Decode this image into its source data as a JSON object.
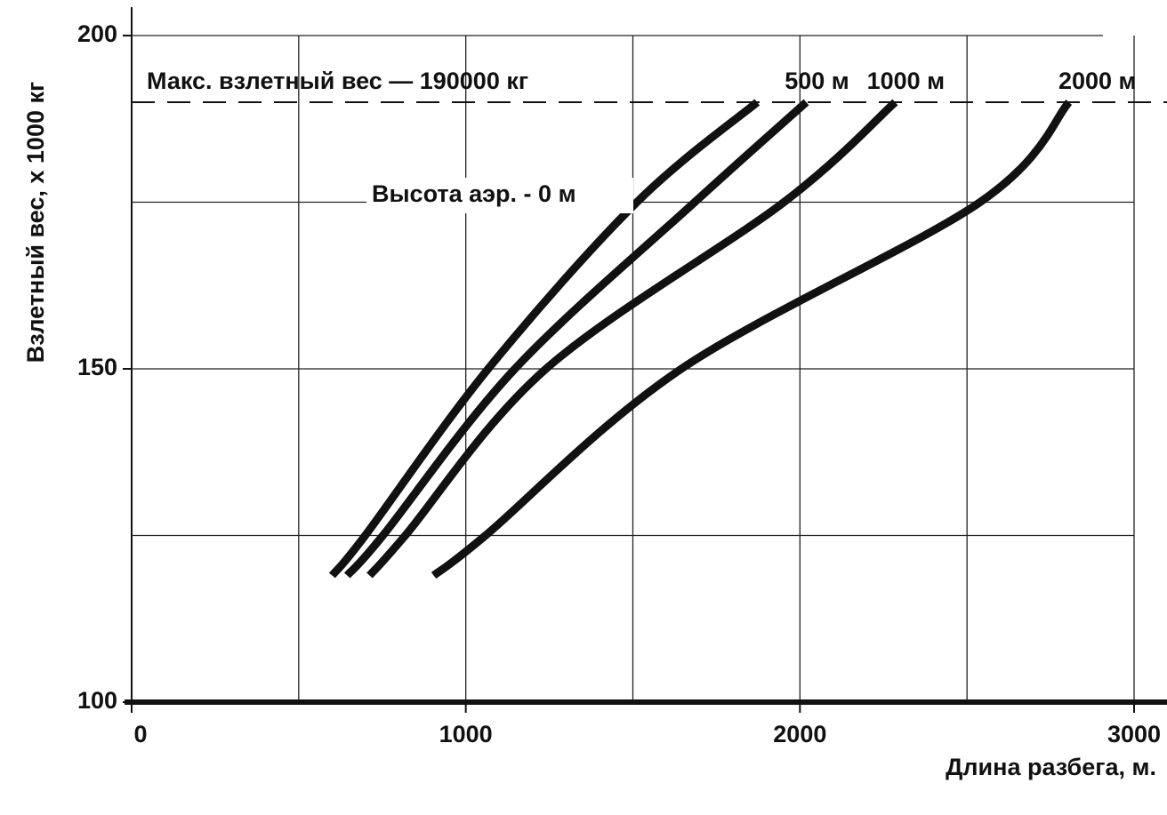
{
  "chart_data": {
    "type": "line",
    "xlabel": "Длина разбега, м.",
    "ylabel": "Взлетный вес, х 1000 кг",
    "annotation": "Макс. взлетный вес — 190000 кг",
    "max_line": 190,
    "xlim": [
      0,
      3000
    ],
    "ylim": [
      100,
      200
    ],
    "xticks": [
      0,
      1000,
      2000,
      3000
    ],
    "yticks": [
      100,
      150,
      200
    ],
    "xgrid": [
      500,
      1000,
      1500,
      2000,
      2500,
      3000
    ],
    "ygrid": [
      125,
      150,
      175,
      200
    ],
    "color": "#111",
    "series": [
      {
        "name": "Высота аэр. - 0 м",
        "x": [
          600,
          699,
          1067,
          1512,
          1872
        ],
        "values": [
          119,
          125,
          150,
          175,
          190
        ]
      },
      {
        "name": "500 м",
        "x": [
          645,
          752,
          1147,
          1685,
          2019
        ],
        "values": [
          119,
          125,
          150,
          175,
          190
        ]
      },
      {
        "name": "1000 м",
        "x": [
          712,
          819,
          1240,
          1952,
          2285
        ],
        "values": [
          119,
          125,
          150,
          175,
          190
        ]
      },
      {
        "name": "2000 м",
        "x": [
          904,
          1059,
          1645,
          2539,
          2805
        ],
        "values": [
          119,
          125,
          150,
          175,
          190
        ]
      }
    ]
  }
}
